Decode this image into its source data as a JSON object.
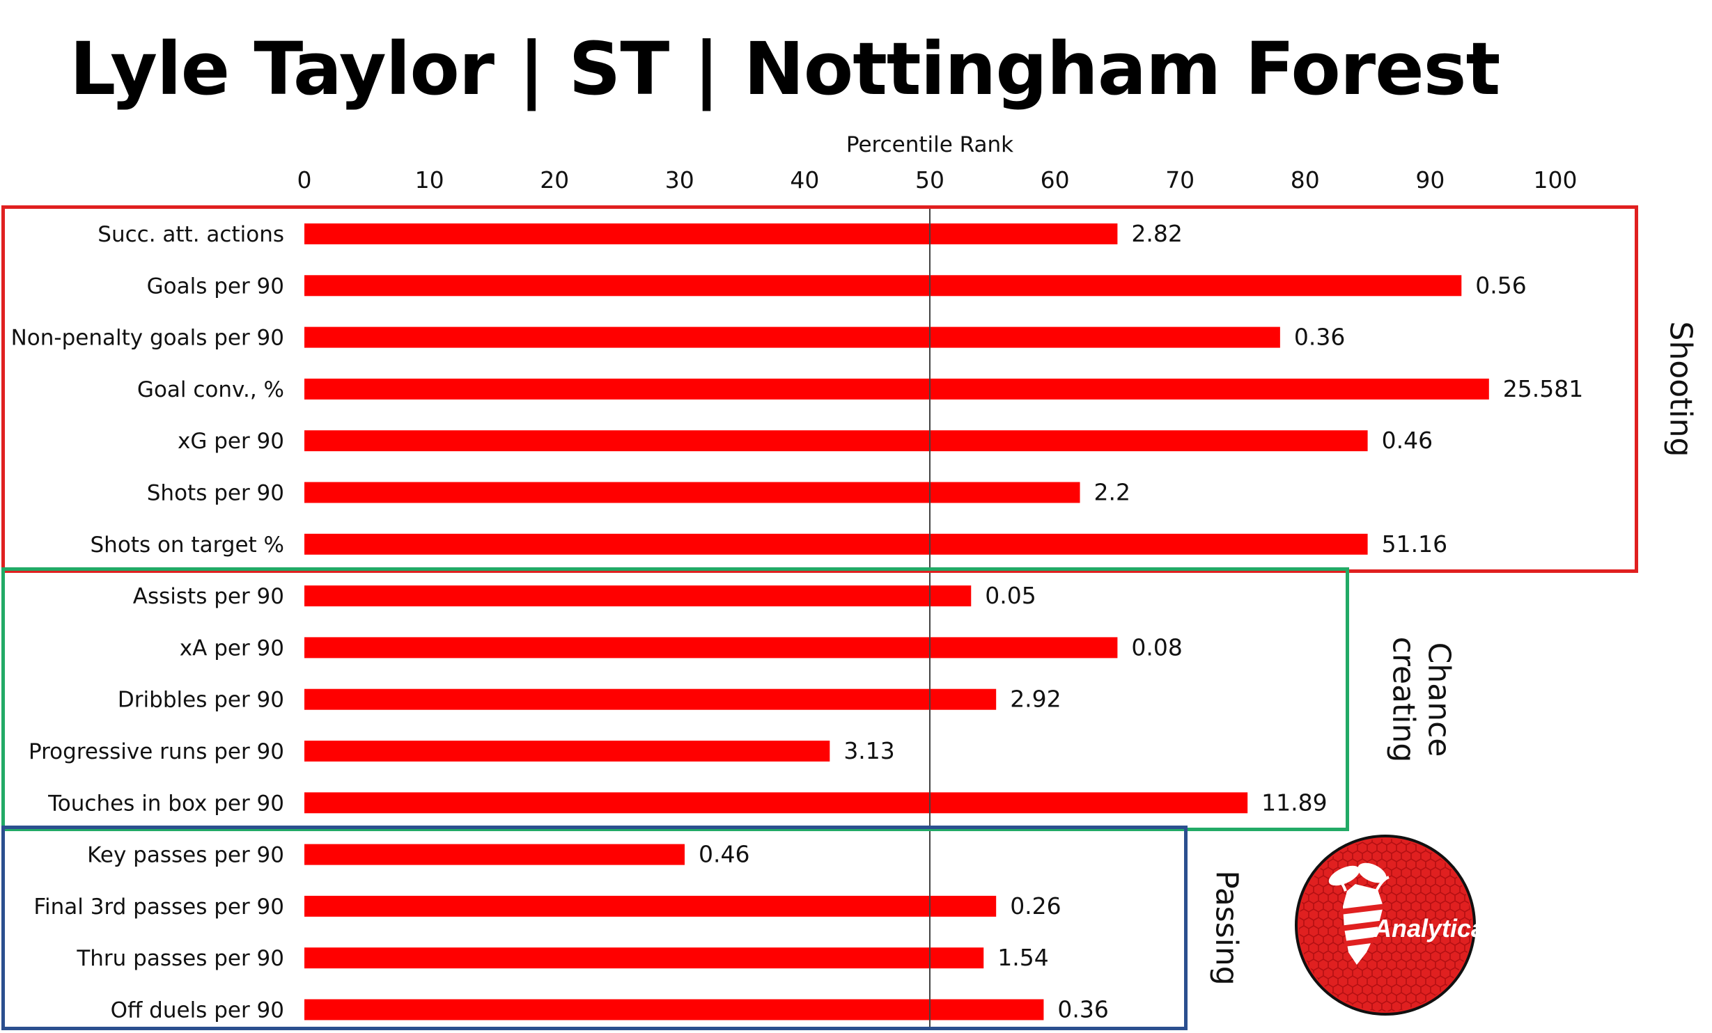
{
  "title": "Lyle Taylor | ST | Nottingham Forest",
  "chart_data": {
    "type": "bar",
    "orientation": "horizontal",
    "title": "Lyle Taylor | ST | Nottingham Forest",
    "xlabel": "Percentile Rank",
    "xlim": [
      0,
      100
    ],
    "xticks": [
      0,
      10,
      20,
      30,
      40,
      50,
      60,
      70,
      80,
      90,
      100
    ],
    "reference_line": 50,
    "bar_color": "#ff0000",
    "categories": [
      "Succ. att. actions",
      "Goals per 90",
      "Non-penalty goals per 90",
      "Goal conv., %",
      "xG per 90",
      "Shots per 90",
      "Shots on target %",
      "Assists per 90",
      "xA per 90",
      "Dribbles per 90",
      "Progressive runs per 90",
      "Touches in box per 90",
      "Key passes per 90",
      "Final 3rd passes per 90",
      "Thru passes per 90",
      "Off duels per 90"
    ],
    "values": [
      65,
      92.5,
      78,
      94.7,
      85,
      62,
      85,
      53.3,
      65,
      55.3,
      42,
      75.4,
      30.4,
      55.3,
      54.3,
      59.1
    ],
    "data_labels": [
      "2.82",
      "0.56",
      "0.36",
      "25.581",
      "0.46",
      "2.2",
      "51.16",
      "0.05",
      "0.08",
      "2.92",
      "3.13",
      "11.89",
      "0.46",
      "0.26",
      "1.54",
      "0.36"
    ],
    "groups": [
      {
        "label": "Shooting",
        "start": 0,
        "end": 6,
        "color": "#e02020"
      },
      {
        "label": "Chance creating",
        "start": 7,
        "end": 11,
        "color": "#22aa66"
      },
      {
        "label": "Passing",
        "start": 12,
        "end": 15,
        "color": "#2b4f8f"
      }
    ]
  },
  "logo": {
    "text": "Analytica",
    "icon": "bee-icon",
    "color": "#e02020"
  }
}
